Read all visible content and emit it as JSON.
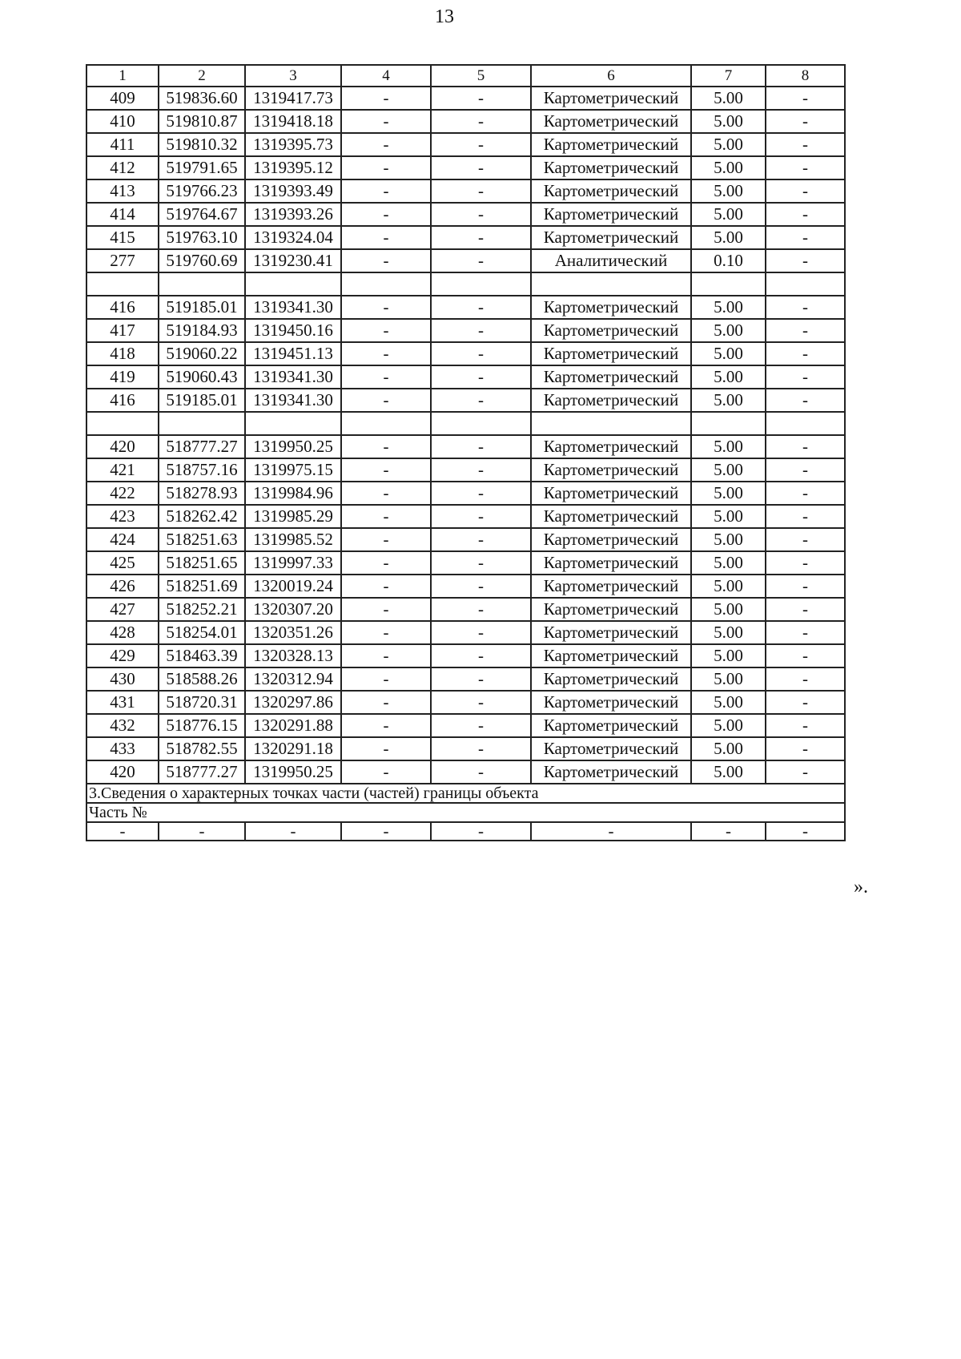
{
  "page_number": "13",
  "table": {
    "headers": [
      "1",
      "2",
      "3",
      "4",
      "5",
      "6",
      "7",
      "8"
    ],
    "rows": [
      [
        "409",
        "519836.60",
        "1319417.73",
        "-",
        "-",
        "Картометрический",
        "5.00",
        "-"
      ],
      [
        "410",
        "519810.87",
        "1319418.18",
        "-",
        "-",
        "Картометрический",
        "5.00",
        "-"
      ],
      [
        "411",
        "519810.32",
        "1319395.73",
        "-",
        "-",
        "Картометрический",
        "5.00",
        "-"
      ],
      [
        "412",
        "519791.65",
        "1319395.12",
        "-",
        "-",
        "Картометрический",
        "5.00",
        "-"
      ],
      [
        "413",
        "519766.23",
        "1319393.49",
        "-",
        "-",
        "Картометрический",
        "5.00",
        "-"
      ],
      [
        "414",
        "519764.67",
        "1319393.26",
        "-",
        "-",
        "Картометрический",
        "5.00",
        "-"
      ],
      [
        "415",
        "519763.10",
        "1319324.04",
        "-",
        "-",
        "Картометрический",
        "5.00",
        "-"
      ],
      [
        "277",
        "519760.69",
        "1319230.41",
        "-",
        "-",
        "Аналитический",
        "0.10",
        "-"
      ],
      [
        "",
        "",
        "",
        "",
        "",
        "",
        "",
        ""
      ],
      [
        "416",
        "519185.01",
        "1319341.30",
        "-",
        "-",
        "Картометрический",
        "5.00",
        "-"
      ],
      [
        "417",
        "519184.93",
        "1319450.16",
        "-",
        "-",
        "Картометрический",
        "5.00",
        "-"
      ],
      [
        "418",
        "519060.22",
        "1319451.13",
        "-",
        "-",
        "Картометрический",
        "5.00",
        "-"
      ],
      [
        "419",
        "519060.43",
        "1319341.30",
        "-",
        "-",
        "Картометрический",
        "5.00",
        "-"
      ],
      [
        "416",
        "519185.01",
        "1319341.30",
        "-",
        "-",
        "Картометрический",
        "5.00",
        "-"
      ],
      [
        "",
        "",
        "",
        "",
        "",
        "",
        "",
        ""
      ],
      [
        "420",
        "518777.27",
        "1319950.25",
        "-",
        "-",
        "Картометрический",
        "5.00",
        "-"
      ],
      [
        "421",
        "518757.16",
        "1319975.15",
        "-",
        "-",
        "Картометрический",
        "5.00",
        "-"
      ],
      [
        "422",
        "518278.93",
        "1319984.96",
        "-",
        "-",
        "Картометрический",
        "5.00",
        "-"
      ],
      [
        "423",
        "518262.42",
        "1319985.29",
        "-",
        "-",
        "Картометрический",
        "5.00",
        "-"
      ],
      [
        "424",
        "518251.63",
        "1319985.52",
        "-",
        "-",
        "Картометрический",
        "5.00",
        "-"
      ],
      [
        "425",
        "518251.65",
        "1319997.33",
        "-",
        "-",
        "Картометрический",
        "5.00",
        "-"
      ],
      [
        "426",
        "518251.69",
        "1320019.24",
        "-",
        "-",
        "Картометрический",
        "5.00",
        "-"
      ],
      [
        "427",
        "518252.21",
        "1320307.20",
        "-",
        "-",
        "Картометрический",
        "5.00",
        "-"
      ],
      [
        "428",
        "518254.01",
        "1320351.26",
        "-",
        "-",
        "Картометрический",
        "5.00",
        "-"
      ],
      [
        "429",
        "518463.39",
        "1320328.13",
        "-",
        "-",
        "Картометрический",
        "5.00",
        "-"
      ],
      [
        "430",
        "518588.26",
        "1320312.94",
        "-",
        "-",
        "Картометрический",
        "5.00",
        "-"
      ],
      [
        "431",
        "518720.31",
        "1320297.86",
        "-",
        "-",
        "Картометрический",
        "5.00",
        "-"
      ],
      [
        "432",
        "518776.15",
        "1320291.88",
        "-",
        "-",
        "Картометрический",
        "5.00",
        "-"
      ],
      [
        "433",
        "518782.55",
        "1320291.18",
        "-",
        "-",
        "Картометрический",
        "5.00",
        "-"
      ],
      [
        "420",
        "518777.27",
        "1319950.25",
        "-",
        "-",
        "Картометрический",
        "5.00",
        "-"
      ]
    ],
    "section_title": "3.Сведения о характерных точках части (частей) границы объекта",
    "part_label": "Часть №",
    "part_row": [
      "-",
      "-",
      "-",
      "-",
      "-",
      "-",
      "-",
      "-"
    ]
  },
  "closing_mark": "».",
  "colors": {
    "text": "#111111",
    "border": "#222222",
    "background": "#ffffff"
  }
}
